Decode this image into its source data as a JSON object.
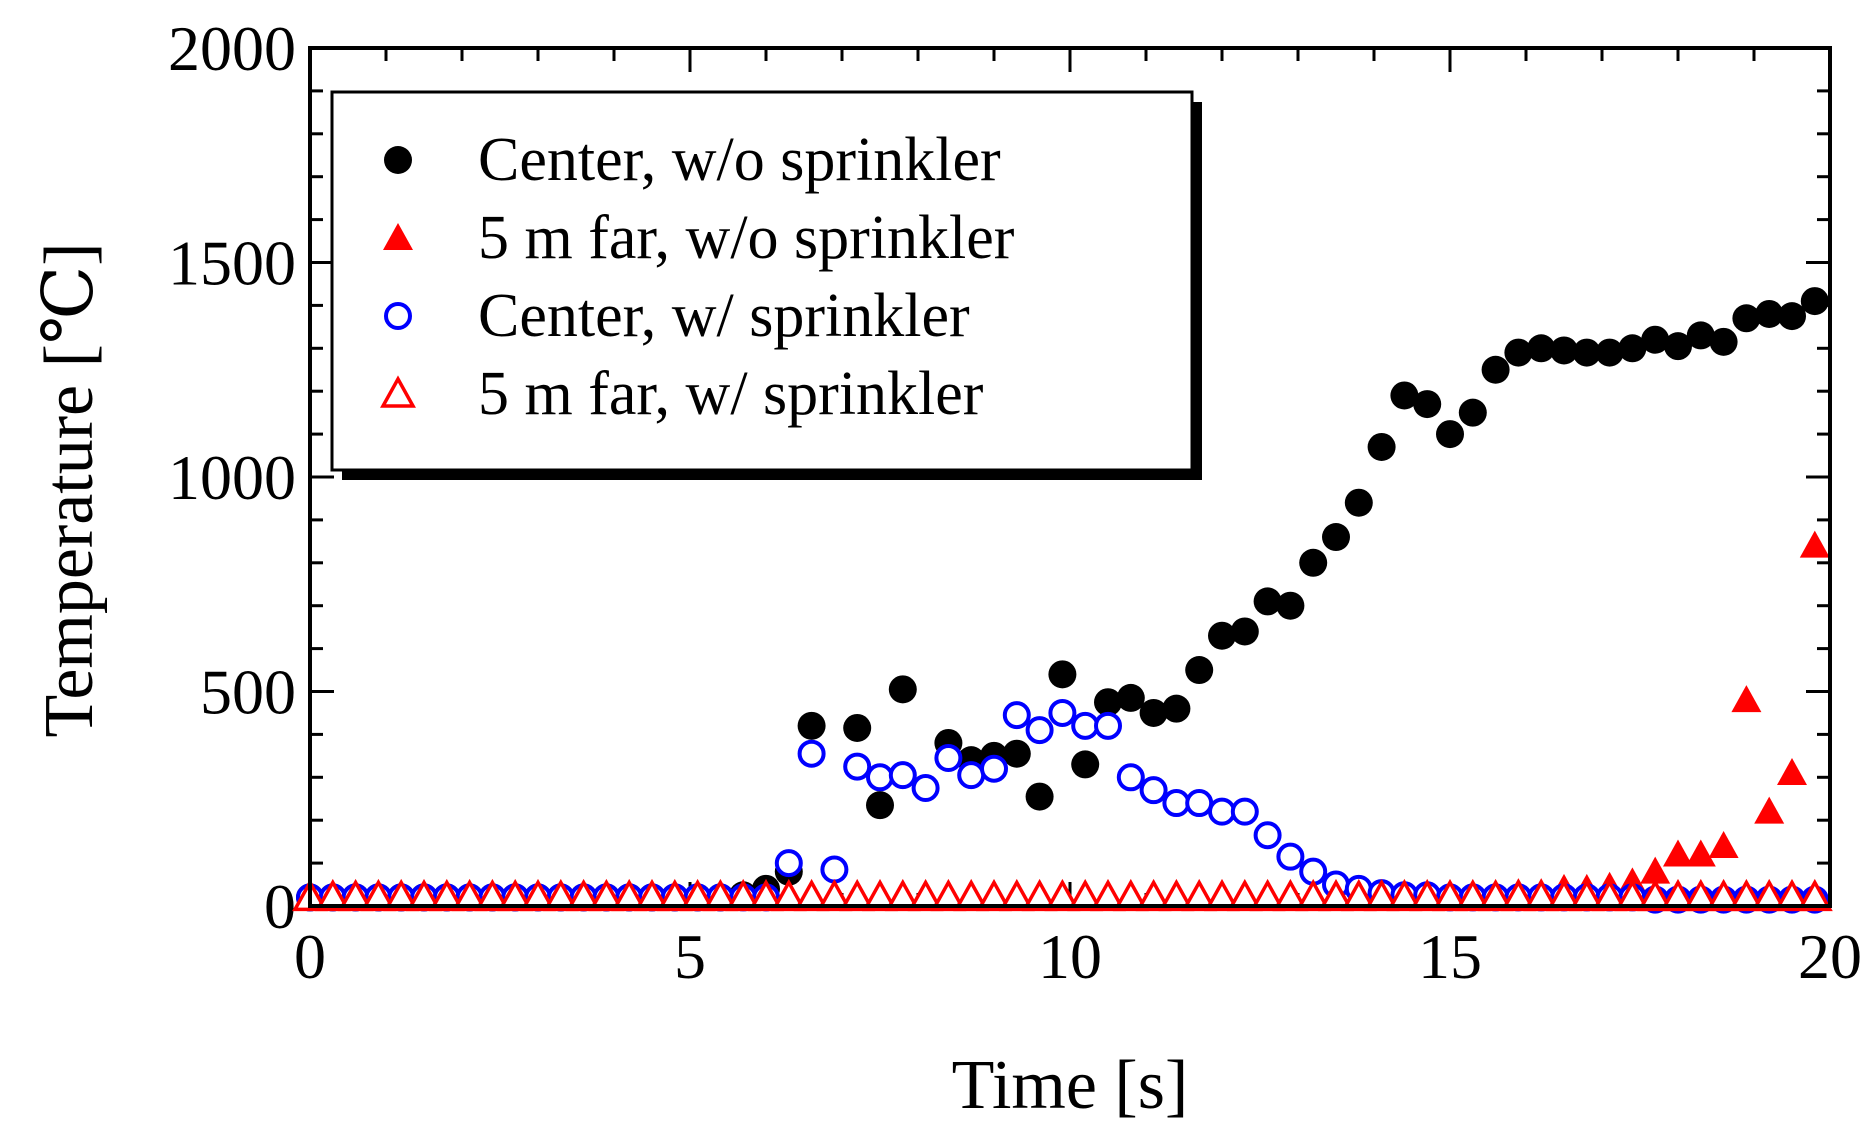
{
  "chart_data": {
    "type": "scatter",
    "title": "",
    "xlabel": "Time [s]",
    "ylabel": "Temperature [℃]",
    "xlim": [
      0,
      20
    ],
    "ylim": [
      0,
      2000
    ],
    "xticks": [
      0,
      5,
      10,
      15,
      20
    ],
    "yticks": [
      0,
      500,
      1000,
      1500,
      2000
    ],
    "x_tick_labels": [
      "0",
      "5",
      "10",
      "15",
      "20"
    ],
    "y_tick_labels": [
      "0",
      "500",
      "1000",
      "1500",
      "2000"
    ],
    "grid": false,
    "legend_position": "top-left",
    "series": [
      {
        "name": "Center, w/o sprinkler",
        "marker": "filled-circle",
        "color": "#000000",
        "points": [
          [
            0,
            20
          ],
          [
            0.3,
            20
          ],
          [
            0.6,
            20
          ],
          [
            0.9,
            20
          ],
          [
            1.2,
            20
          ],
          [
            1.5,
            20
          ],
          [
            1.8,
            20
          ],
          [
            2.1,
            20
          ],
          [
            2.4,
            20
          ],
          [
            2.7,
            20
          ],
          [
            3.0,
            20
          ],
          [
            3.3,
            20
          ],
          [
            3.6,
            20
          ],
          [
            3.9,
            20
          ],
          [
            4.2,
            20
          ],
          [
            4.5,
            20
          ],
          [
            4.8,
            20
          ],
          [
            5.1,
            20
          ],
          [
            5.4,
            20
          ],
          [
            5.7,
            25
          ],
          [
            6.0,
            40
          ],
          [
            6.3,
            80
          ],
          [
            6.6,
            420
          ],
          [
            7.2,
            415
          ],
          [
            7.5,
            235
          ],
          [
            7.8,
            505
          ],
          [
            8.4,
            380
          ],
          [
            8.7,
            340
          ],
          [
            9.0,
            350
          ],
          [
            9.3,
            355
          ],
          [
            9.6,
            255
          ],
          [
            9.9,
            540
          ],
          [
            10.2,
            330
          ],
          [
            10.5,
            475
          ],
          [
            10.8,
            485
          ],
          [
            11.1,
            450
          ],
          [
            11.4,
            460
          ],
          [
            11.7,
            550
          ],
          [
            12.0,
            630
          ],
          [
            12.3,
            640
          ],
          [
            12.6,
            710
          ],
          [
            12.9,
            700
          ],
          [
            13.2,
            800
          ],
          [
            13.5,
            860
          ],
          [
            13.8,
            940
          ],
          [
            14.1,
            1070
          ],
          [
            14.4,
            1190
          ],
          [
            14.7,
            1170
          ],
          [
            15.0,
            1100
          ],
          [
            15.3,
            1150
          ],
          [
            15.6,
            1250
          ],
          [
            15.9,
            1290
          ],
          [
            16.2,
            1300
          ],
          [
            16.5,
            1295
          ],
          [
            16.8,
            1290
          ],
          [
            17.1,
            1290
          ],
          [
            17.4,
            1300
          ],
          [
            17.7,
            1320
          ],
          [
            18.0,
            1305
          ],
          [
            18.3,
            1330
          ],
          [
            18.6,
            1315
          ],
          [
            18.9,
            1370
          ],
          [
            19.2,
            1380
          ],
          [
            19.5,
            1375
          ],
          [
            19.8,
            1410
          ]
        ]
      },
      {
        "name": "5 m far, w/o sprinkler",
        "marker": "filled-triangle",
        "color": "#ff0000",
        "points": [
          [
            0,
            20
          ],
          [
            0.3,
            20
          ],
          [
            0.6,
            20
          ],
          [
            0.9,
            20
          ],
          [
            1.2,
            20
          ],
          [
            1.5,
            20
          ],
          [
            1.8,
            20
          ],
          [
            2.1,
            20
          ],
          [
            2.4,
            20
          ],
          [
            2.7,
            20
          ],
          [
            3.0,
            20
          ],
          [
            3.3,
            20
          ],
          [
            3.6,
            20
          ],
          [
            3.9,
            20
          ],
          [
            4.2,
            20
          ],
          [
            4.5,
            20
          ],
          [
            4.8,
            20
          ],
          [
            5.1,
            20
          ],
          [
            5.4,
            20
          ],
          [
            5.7,
            20
          ],
          [
            6.0,
            20
          ],
          [
            6.3,
            20
          ],
          [
            6.6,
            20
          ],
          [
            6.9,
            20
          ],
          [
            7.2,
            20
          ],
          [
            7.5,
            20
          ],
          [
            7.8,
            20
          ],
          [
            8.1,
            20
          ],
          [
            8.4,
            20
          ],
          [
            8.7,
            20
          ],
          [
            9.0,
            20
          ],
          [
            9.3,
            20
          ],
          [
            9.6,
            20
          ],
          [
            9.9,
            20
          ],
          [
            10.2,
            20
          ],
          [
            10.5,
            20
          ],
          [
            10.8,
            20
          ],
          [
            11.1,
            20
          ],
          [
            11.4,
            20
          ],
          [
            11.7,
            20
          ],
          [
            12.0,
            20
          ],
          [
            12.3,
            20
          ],
          [
            12.6,
            20
          ],
          [
            12.9,
            20
          ],
          [
            13.2,
            20
          ],
          [
            13.5,
            20
          ],
          [
            13.8,
            20
          ],
          [
            14.1,
            20
          ],
          [
            14.4,
            20
          ],
          [
            14.7,
            20
          ],
          [
            15.0,
            20
          ],
          [
            15.3,
            25
          ],
          [
            15.6,
            25
          ],
          [
            15.9,
            30
          ],
          [
            16.2,
            30
          ],
          [
            16.5,
            40
          ],
          [
            16.8,
            40
          ],
          [
            17.1,
            45
          ],
          [
            17.4,
            55
          ],
          [
            17.7,
            80
          ],
          [
            18.0,
            120
          ],
          [
            18.3,
            120
          ],
          [
            18.6,
            140
          ],
          [
            18.9,
            480
          ],
          [
            19.2,
            220
          ],
          [
            19.5,
            310
          ],
          [
            19.8,
            840
          ]
        ]
      },
      {
        "name": "Center, w/ sprinkler",
        "marker": "open-circle",
        "color": "#0000ff",
        "points": [
          [
            0,
            20
          ],
          [
            0.3,
            20
          ],
          [
            0.6,
            20
          ],
          [
            0.9,
            20
          ],
          [
            1.2,
            20
          ],
          [
            1.5,
            20
          ],
          [
            1.8,
            20
          ],
          [
            2.1,
            20
          ],
          [
            2.4,
            20
          ],
          [
            2.7,
            20
          ],
          [
            3.0,
            20
          ],
          [
            3.3,
            20
          ],
          [
            3.6,
            20
          ],
          [
            3.9,
            20
          ],
          [
            4.2,
            20
          ],
          [
            4.5,
            20
          ],
          [
            4.8,
            20
          ],
          [
            5.1,
            20
          ],
          [
            5.4,
            20
          ],
          [
            5.7,
            20
          ],
          [
            6.0,
            20
          ],
          [
            6.3,
            100
          ],
          [
            6.6,
            355
          ],
          [
            6.9,
            85
          ],
          [
            7.2,
            325
          ],
          [
            7.5,
            300
          ],
          [
            7.8,
            305
          ],
          [
            8.1,
            275
          ],
          [
            8.4,
            345
          ],
          [
            8.7,
            305
          ],
          [
            9.0,
            320
          ],
          [
            9.3,
            445
          ],
          [
            9.6,
            410
          ],
          [
            9.9,
            450
          ],
          [
            10.2,
            420
          ],
          [
            10.5,
            420
          ],
          [
            10.8,
            300
          ],
          [
            11.1,
            270
          ],
          [
            11.4,
            240
          ],
          [
            11.7,
            240
          ],
          [
            12.0,
            220
          ],
          [
            12.3,
            220
          ],
          [
            12.6,
            165
          ],
          [
            12.9,
            115
          ],
          [
            13.2,
            80
          ],
          [
            13.5,
            50
          ],
          [
            13.8,
            40
          ],
          [
            14.1,
            30
          ],
          [
            14.4,
            25
          ],
          [
            14.7,
            25
          ],
          [
            15.0,
            20
          ],
          [
            15.3,
            20
          ],
          [
            15.6,
            20
          ],
          [
            15.9,
            20
          ],
          [
            16.2,
            20
          ],
          [
            16.5,
            20
          ],
          [
            16.8,
            20
          ],
          [
            17.1,
            20
          ],
          [
            17.4,
            20
          ],
          [
            17.7,
            15
          ],
          [
            18.0,
            15
          ],
          [
            18.3,
            15
          ],
          [
            18.6,
            15
          ],
          [
            18.9,
            15
          ],
          [
            19.2,
            15
          ],
          [
            19.5,
            15
          ],
          [
            19.8,
            15
          ]
        ]
      },
      {
        "name": "5 m far, w/ sprinkler",
        "marker": "open-triangle",
        "color": "#ff0000",
        "points": [
          [
            0,
            20
          ],
          [
            0.3,
            20
          ],
          [
            0.6,
            20
          ],
          [
            0.9,
            20
          ],
          [
            1.2,
            20
          ],
          [
            1.5,
            20
          ],
          [
            1.8,
            20
          ],
          [
            2.1,
            20
          ],
          [
            2.4,
            20
          ],
          [
            2.7,
            20
          ],
          [
            3.0,
            20
          ],
          [
            3.3,
            20
          ],
          [
            3.6,
            20
          ],
          [
            3.9,
            20
          ],
          [
            4.2,
            20
          ],
          [
            4.5,
            20
          ],
          [
            4.8,
            20
          ],
          [
            5.1,
            20
          ],
          [
            5.4,
            20
          ],
          [
            5.7,
            20
          ],
          [
            6.0,
            20
          ],
          [
            6.3,
            20
          ],
          [
            6.6,
            20
          ],
          [
            6.9,
            20
          ],
          [
            7.2,
            20
          ],
          [
            7.5,
            20
          ],
          [
            7.8,
            20
          ],
          [
            8.1,
            20
          ],
          [
            8.4,
            20
          ],
          [
            8.7,
            20
          ],
          [
            9.0,
            20
          ],
          [
            9.3,
            20
          ],
          [
            9.6,
            20
          ],
          [
            9.9,
            20
          ],
          [
            10.2,
            20
          ],
          [
            10.5,
            20
          ],
          [
            10.8,
            20
          ],
          [
            11.1,
            20
          ],
          [
            11.4,
            20
          ],
          [
            11.7,
            20
          ],
          [
            12.0,
            20
          ],
          [
            12.3,
            20
          ],
          [
            12.6,
            20
          ],
          [
            12.9,
            20
          ],
          [
            13.2,
            20
          ],
          [
            13.5,
            20
          ],
          [
            13.8,
            20
          ],
          [
            14.1,
            20
          ],
          [
            14.4,
            20
          ],
          [
            14.7,
            20
          ],
          [
            15.0,
            20
          ],
          [
            15.3,
            20
          ],
          [
            15.6,
            20
          ],
          [
            15.9,
            20
          ],
          [
            16.2,
            20
          ],
          [
            16.5,
            20
          ],
          [
            16.8,
            20
          ],
          [
            17.1,
            20
          ],
          [
            17.4,
            20
          ],
          [
            17.7,
            20
          ],
          [
            18.0,
            20
          ],
          [
            18.3,
            20
          ],
          [
            18.6,
            20
          ],
          [
            18.9,
            20
          ],
          [
            19.2,
            20
          ],
          [
            19.5,
            20
          ],
          [
            19.8,
            20
          ]
        ]
      }
    ]
  }
}
